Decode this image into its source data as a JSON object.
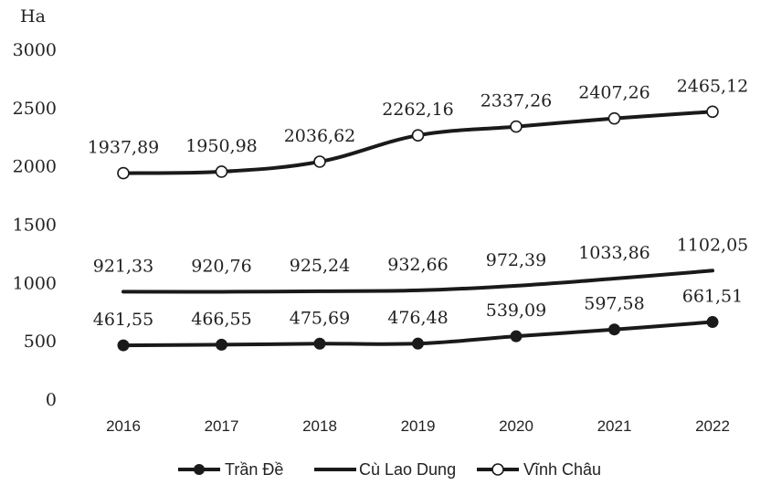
{
  "chart_data": {
    "type": "line",
    "title": "",
    "ylabel": "Ha",
    "xlabel": "",
    "categories": [
      "2016",
      "2017",
      "2018",
      "2019",
      "2020",
      "2021",
      "2022"
    ],
    "ylim": [
      0,
      3000
    ],
    "yticks": [
      "0",
      "500",
      "1000",
      "1500",
      "2000",
      "2500",
      "3000"
    ],
    "grid": false,
    "legend": "bottom",
    "series": [
      {
        "name": "Trần Đề",
        "marker": "filled-circle",
        "values": [
          461.55,
          466.55,
          475.69,
          476.48,
          539.09,
          597.58,
          661.51
        ],
        "labels": [
          "461,55",
          "466,55",
          "475,69",
          "476,48",
          "539,09",
          "597,58",
          "661,51"
        ]
      },
      {
        "name": "Cù Lao Dung",
        "marker": "none",
        "values": [
          921.33,
          920.76,
          925.24,
          932.66,
          972.39,
          1033.86,
          1102.05
        ],
        "labels": [
          "921,33",
          "920,76",
          "925,24",
          "932,66",
          "972,39",
          "1033,86",
          "1102,05"
        ]
      },
      {
        "name": "Vĩnh Châu",
        "marker": "open-circle",
        "values": [
          1937.89,
          1950.98,
          2036.62,
          2262.16,
          2337.26,
          2407.26,
          2465.12
        ],
        "labels": [
          "1937,89",
          "1950,98",
          "2036,62",
          "2262,16",
          "2337,26",
          "2407,26",
          "2465,12"
        ]
      }
    ],
    "colors": {
      "line": "#1a1a1a",
      "text": "#222222",
      "open_fill": "#ffffff"
    }
  }
}
